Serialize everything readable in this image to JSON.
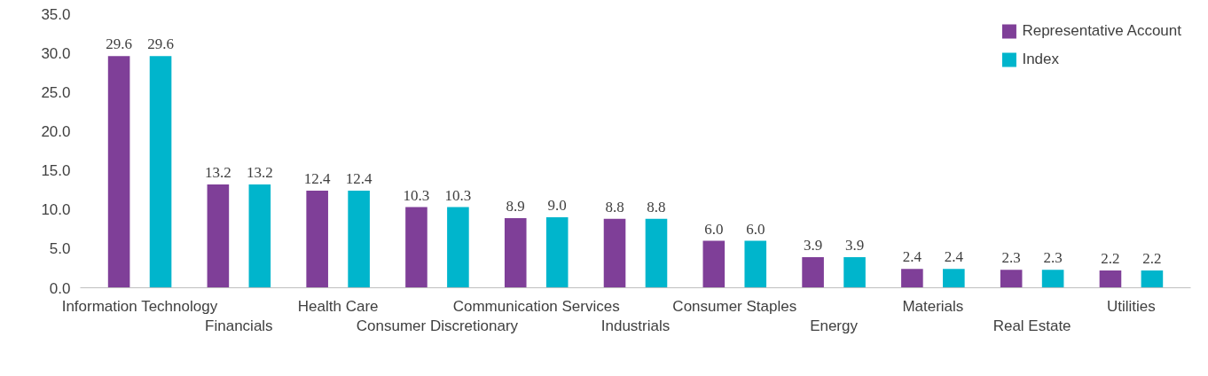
{
  "chart_data": {
    "type": "bar",
    "categories": [
      "Information Technology",
      "Financials",
      "Health Care",
      "Consumer Discretionary",
      "Communication Services",
      "Industrials",
      "Consumer Staples",
      "Energy",
      "Materials",
      "Real Estate",
      "Utilities"
    ],
    "series": [
      {
        "name": "Representative Account",
        "color": "#7f3f98",
        "values": [
          29.6,
          13.2,
          12.4,
          10.3,
          8.9,
          8.8,
          6.0,
          3.9,
          2.4,
          2.3,
          2.2
        ],
        "value_labels": [
          "29.6",
          "13.2",
          "12.4",
          "10.3",
          "8.9",
          "8.8",
          "6.0",
          "3.9",
          "2.4",
          "2.3",
          "2.2"
        ]
      },
      {
        "name": "Index",
        "color": "#00b5cc",
        "values": [
          29.6,
          13.2,
          12.4,
          10.3,
          9.0,
          8.8,
          6.0,
          3.9,
          2.4,
          2.3,
          2.2
        ],
        "value_labels": [
          "29.6",
          "13.2",
          "12.4",
          "10.3",
          "9.0",
          "8.8",
          "6.0",
          "3.9",
          "2.4",
          "2.3",
          "2.2"
        ]
      }
    ],
    "ylim": [
      0,
      35
    ],
    "yticks": [
      {
        "value": 0,
        "label": "0.0"
      },
      {
        "value": 5,
        "label": "5.0"
      },
      {
        "value": 10,
        "label": "10.0"
      },
      {
        "value": 15,
        "label": "15.0"
      },
      {
        "value": 20,
        "label": "20.0"
      },
      {
        "value": 25,
        "label": "25.0"
      },
      {
        "value": 30,
        "label": "30.0"
      },
      {
        "value": 35,
        "label": "35.0"
      }
    ],
    "grid": false,
    "legend": "top right"
  }
}
